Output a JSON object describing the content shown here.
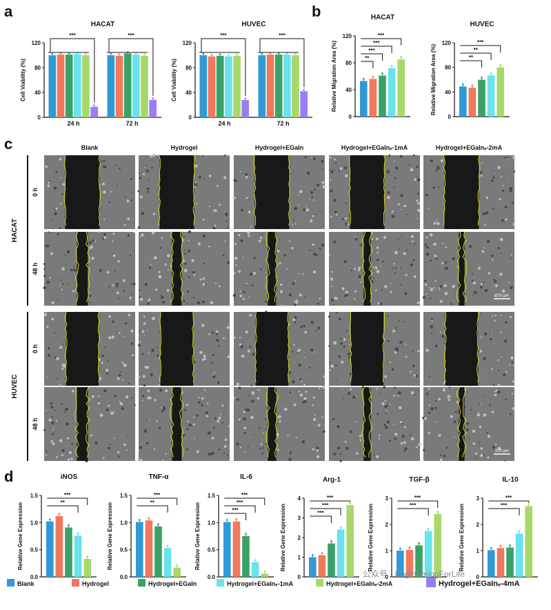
{
  "colors": {
    "blank": "#2f9ad6",
    "hydrogel": "#f0795d",
    "egain": "#3aa266",
    "egain1": "#6ae2ec",
    "egain2": "#a6d96a",
    "egain4": "#9a7df5",
    "outline": "#e6e600",
    "image_bg": "#181818"
  },
  "panel_letters": {
    "a": "a",
    "b": "b",
    "c": "c",
    "d": "d"
  },
  "legend": [
    {
      "label": "Blank",
      "color_key": "blank"
    },
    {
      "label": "Hydrogel",
      "color_key": "hydrogel"
    },
    {
      "label": "Hydrogel+EGaIn",
      "color_key": "egain"
    },
    {
      "label": "Hydrogel+EGaInₑ-1mA",
      "color_key": "egain1"
    },
    {
      "label": "Hydrogel+EGaInₑ-2mA",
      "color_key": "egain2"
    },
    {
      "label": "Hydrogel+EGaInₑ-4mA",
      "color_key": "egain4"
    }
  ],
  "watermark": "公众号 · EngineeringForLife",
  "panel_c": {
    "columns": [
      "Blank",
      "Hydrogel",
      "Hydrogel+EGaIn",
      "Hydrogel+EGaInₑ-1mA",
      "Hydrogel+EGaInₑ-2mA"
    ],
    "cell_lines": [
      {
        "name": "HACAT",
        "times": [
          "0 h",
          "48 h"
        ]
      },
      {
        "name": "HUVEC",
        "times": [
          "0 h",
          "48 h"
        ]
      }
    ],
    "scale_bar": "200 μm"
  },
  "chart_data": [
    {
      "id": "a-hacat",
      "type": "bar",
      "panel": "a",
      "title": "HACAT",
      "ylabel": "Cell Viability (%)",
      "ylim": [
        0,
        120
      ],
      "yticks": [
        0,
        40,
        80,
        120
      ],
      "categories": [
        "24 h",
        "72 h"
      ],
      "series": [
        {
          "name": "Blank",
          "color_key": "blank",
          "values": [
            100,
            100
          ]
        },
        {
          "name": "Hydrogel",
          "color_key": "hydrogel",
          "values": [
            101,
            99
          ]
        },
        {
          "name": "Hydrogel+EGaIn",
          "color_key": "egain",
          "values": [
            101,
            103
          ]
        },
        {
          "name": "Hydrogel+EGaInₑ-1mA",
          "color_key": "egain1",
          "values": [
            102,
            101
          ]
        },
        {
          "name": "Hydrogel+EGaInₑ-2mA",
          "color_key": "egain2",
          "values": [
            100,
            99
          ]
        },
        {
          "name": "Hydrogel+EGaInₑ-4mA",
          "color_key": "egain4",
          "values": [
            17,
            28
          ]
        }
      ],
      "significance": [
        "***",
        "***"
      ]
    },
    {
      "id": "a-huvec",
      "type": "bar",
      "panel": "a",
      "title": "HUVEC",
      "ylabel": "Cell Viability (%)",
      "ylim": [
        0,
        120
      ],
      "yticks": [
        0,
        40,
        80,
        120
      ],
      "categories": [
        "24 h",
        "72 h"
      ],
      "series": [
        {
          "name": "Blank",
          "color_key": "blank",
          "values": [
            100,
            100
          ]
        },
        {
          "name": "Hydrogel",
          "color_key": "hydrogel",
          "values": [
            98,
            101
          ]
        },
        {
          "name": "Hydrogel+EGaIn",
          "color_key": "egain",
          "values": [
            99,
            101
          ]
        },
        {
          "name": "Hydrogel+EGaInₑ-1mA",
          "color_key": "egain1",
          "values": [
            98,
            101
          ]
        },
        {
          "name": "Hydrogel+EGaInₑ-2mA",
          "color_key": "egain2",
          "values": [
            99,
            100
          ]
        },
        {
          "name": "Hydrogel+EGaInₑ-4mA",
          "color_key": "egain4",
          "values": [
            28,
            42
          ]
        }
      ],
      "significance": [
        "***",
        "***"
      ]
    },
    {
      "id": "b-hacat",
      "type": "bar",
      "panel": "b",
      "title": "HACAT",
      "ylabel": "Relative Migration Area (%)",
      "ylim": [
        0,
        120
      ],
      "yticks": [
        0,
        40,
        80,
        120
      ],
      "categories": [
        "Blank",
        "Hydrogel",
        "Hydrogel+EGaIn",
        "Hydrogel+EGaInₑ-1mA",
        "Hydrogel+EGaInₑ-2mA"
      ],
      "values": [
        53,
        56,
        61,
        72,
        85
      ],
      "color_keys": [
        "blank",
        "hydrogel",
        "egain",
        "egain1",
        "egain2"
      ],
      "significance": [
        "***",
        "***",
        "***",
        "**"
      ]
    },
    {
      "id": "b-huvec",
      "type": "bar",
      "panel": "b",
      "title": "HUVEC",
      "ylabel": "Relative Migration Area (%)",
      "ylim": [
        0,
        120
      ],
      "yticks": [
        0,
        40,
        80,
        120
      ],
      "categories": [
        "Blank",
        "Hydrogel",
        "Hydrogel+EGaIn",
        "Hydrogel+EGaInₑ-1mA",
        "Hydrogel+EGaInₑ-2mA"
      ],
      "values": [
        49,
        47,
        60,
        67,
        80
      ],
      "color_keys": [
        "blank",
        "hydrogel",
        "egain",
        "egain1",
        "egain2"
      ],
      "significance": [
        "***",
        "**",
        "**"
      ]
    },
    {
      "id": "d-inos",
      "type": "bar",
      "panel": "d",
      "title": "iNOS",
      "ylabel": "Relative Gene Expression",
      "ylim": [
        0,
        1.5
      ],
      "yticks": [
        0.0,
        0.5,
        1.0,
        1.5
      ],
      "values": [
        1.02,
        1.12,
        0.91,
        0.76,
        0.33
      ],
      "color_keys": [
        "blank",
        "hydrogel",
        "egain",
        "egain1",
        "egain2"
      ],
      "significance": [
        "***",
        "**"
      ]
    },
    {
      "id": "d-tnf",
      "type": "bar",
      "panel": "d",
      "title": "TNF-α",
      "ylabel": "Relative Gene Expression",
      "ylim": [
        0,
        1.5
      ],
      "yticks": [
        0.0,
        0.5,
        1.0,
        1.5
      ],
      "values": [
        1.01,
        1.04,
        0.93,
        0.53,
        0.17
      ],
      "color_keys": [
        "blank",
        "hydrogel",
        "egain",
        "egain1",
        "egain2"
      ],
      "significance": [
        "***",
        "**"
      ]
    },
    {
      "id": "d-il6",
      "type": "bar",
      "panel": "d",
      "title": "IL-6",
      "ylabel": "Relative Gene Expression",
      "ylim": [
        0,
        1.5
      ],
      "yticks": [
        0.0,
        0.5,
        1.0,
        1.5
      ],
      "values": [
        1.01,
        1.02,
        0.75,
        0.27,
        0.06
      ],
      "color_keys": [
        "blank",
        "hydrogel",
        "egain",
        "egain1",
        "egain2"
      ],
      "significance": [
        "***",
        "***",
        "***"
      ]
    },
    {
      "id": "d-arg1",
      "type": "bar",
      "panel": "d",
      "title": "Arg-1",
      "ylabel": "Relative Gene Expression",
      "ylim": [
        0,
        4
      ],
      "yticks": [
        0,
        1,
        2,
        3,
        4
      ],
      "values": [
        1.0,
        1.1,
        1.7,
        2.4,
        3.65
      ],
      "color_keys": [
        "blank",
        "hydrogel",
        "egain",
        "egain1",
        "egain2"
      ],
      "significance": [
        "***",
        "***",
        "***"
      ]
    },
    {
      "id": "d-tgfb",
      "type": "bar",
      "panel": "d",
      "title": "TGF-β",
      "ylabel": "Relative Gene Expression",
      "ylim": [
        0,
        3
      ],
      "yticks": [
        0,
        1,
        2,
        3
      ],
      "values": [
        1.0,
        1.03,
        1.2,
        1.75,
        2.4
      ],
      "color_keys": [
        "blank",
        "hydrogel",
        "egain",
        "egain1",
        "egain2"
      ],
      "significance": [
        "***",
        "***"
      ]
    },
    {
      "id": "d-il10",
      "type": "bar",
      "panel": "d",
      "title": "IL-10",
      "ylabel": "Relative Gene Expression",
      "ylim": [
        0,
        3
      ],
      "yticks": [
        0,
        1,
        2,
        3
      ],
      "values": [
        1.02,
        1.1,
        1.12,
        1.65,
        2.7
      ],
      "color_keys": [
        "blank",
        "hydrogel",
        "egain",
        "egain1",
        "egain2"
      ],
      "significance": [
        "***",
        "***"
      ]
    }
  ]
}
